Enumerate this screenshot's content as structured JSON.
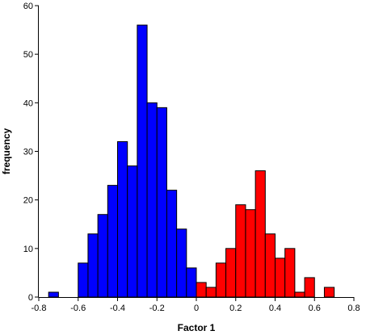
{
  "chart_data": {
    "type": "bar",
    "title": "",
    "xlabel": "Factor 1",
    "ylabel": "frequency",
    "xlim": [
      -0.8,
      0.8
    ],
    "ylim": [
      0,
      60
    ],
    "xticks": [
      -0.8,
      -0.6,
      -0.4,
      -0.2,
      0,
      0.2,
      0.4,
      0.6,
      0.8
    ],
    "xtick_labels": [
      "-0.8",
      "-0.6",
      "-0.4",
      "-0.2",
      "0",
      "0.2",
      "0.4",
      "0.6",
      "0.8"
    ],
    "yticks": [
      0,
      10,
      20,
      30,
      40,
      50,
      60
    ],
    "ytick_labels": [
      "0",
      "10",
      "20",
      "30",
      "40",
      "50",
      "60"
    ],
    "bin_width": 0.05,
    "grid": false,
    "legend": "none",
    "series": [
      {
        "color": "#0000ff",
        "bins": [
          {
            "x0": -0.75,
            "x1": -0.7,
            "count": 1
          },
          {
            "x0": -0.6,
            "x1": -0.55,
            "count": 7
          },
          {
            "x0": -0.55,
            "x1": -0.5,
            "count": 13
          },
          {
            "x0": -0.5,
            "x1": -0.45,
            "count": 17
          },
          {
            "x0": -0.45,
            "x1": -0.4,
            "count": 23
          },
          {
            "x0": -0.4,
            "x1": -0.35,
            "count": 32
          },
          {
            "x0": -0.35,
            "x1": -0.3,
            "count": 27
          },
          {
            "x0": -0.3,
            "x1": -0.25,
            "count": 56
          },
          {
            "x0": -0.25,
            "x1": -0.2,
            "count": 40
          },
          {
            "x0": -0.2,
            "x1": -0.15,
            "count": 39
          },
          {
            "x0": -0.15,
            "x1": -0.1,
            "count": 22
          },
          {
            "x0": -0.1,
            "x1": -0.05,
            "count": 14
          },
          {
            "x0": -0.05,
            "x1": 0.0,
            "count": 6
          },
          {
            "x0": 0.0,
            "x1": 0.05,
            "count": 1
          },
          {
            "x0": 0.05,
            "x1": 0.1,
            "count": 1
          }
        ]
      },
      {
        "color": "#ff0000",
        "bins": [
          {
            "x0": 0.0,
            "x1": 0.05,
            "count": 3
          },
          {
            "x0": 0.05,
            "x1": 0.1,
            "count": 2
          },
          {
            "x0": 0.1,
            "x1": 0.15,
            "count": 7
          },
          {
            "x0": 0.15,
            "x1": 0.2,
            "count": 10
          },
          {
            "x0": 0.2,
            "x1": 0.25,
            "count": 19
          },
          {
            "x0": 0.25,
            "x1": 0.3,
            "count": 18
          },
          {
            "x0": 0.3,
            "x1": 0.35,
            "count": 26
          },
          {
            "x0": 0.35,
            "x1": 0.4,
            "count": 13
          },
          {
            "x0": 0.4,
            "x1": 0.45,
            "count": 8
          },
          {
            "x0": 0.45,
            "x1": 0.5,
            "count": 10
          },
          {
            "x0": 0.5,
            "x1": 0.55,
            "count": 1
          },
          {
            "x0": 0.55,
            "x1": 0.6,
            "count": 4
          },
          {
            "x0": 0.65,
            "x1": 0.7,
            "count": 2
          }
        ]
      }
    ]
  }
}
